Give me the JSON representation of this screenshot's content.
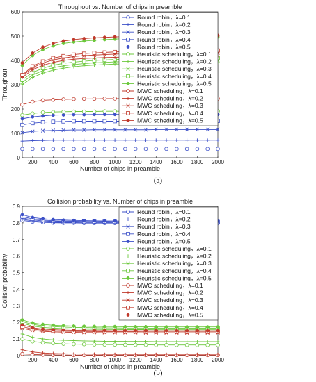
{
  "figure": {
    "caption_a": "(a)",
    "caption_b": "(b)"
  },
  "chart_data": [
    {
      "type": "line",
      "title": "Throughout vs. Number of chips in preamble",
      "xlabel": "Number of chips in preamble",
      "ylabel": "Throughout",
      "xlim": [
        100,
        2000
      ],
      "ylim": [
        0,
        600
      ],
      "xticks": [
        200,
        400,
        600,
        800,
        1000,
        1200,
        1400,
        1600,
        1800,
        2000
      ],
      "yticks": [
        0,
        100,
        200,
        300,
        400,
        500,
        600
      ],
      "grid": false,
      "legend_position": "right",
      "x": [
        100,
        200,
        300,
        400,
        500,
        600,
        700,
        800,
        900,
        1000,
        1100,
        1200,
        1300,
        1400,
        1500,
        1600,
        1700,
        1800,
        1900,
        2000
      ],
      "series": [
        {
          "name": "Round robin，λ=0.1",
          "color": "#3c50c8",
          "marker": "circle",
          "values": [
            36,
            36,
            36,
            36,
            36,
            36,
            36,
            36,
            36,
            36,
            36,
            36,
            36,
            36,
            36,
            36,
            36,
            36,
            36,
            36
          ]
        },
        {
          "name": "Round robin，λ=0.2",
          "color": "#3c50c8",
          "marker": "plus",
          "values": [
            68,
            70,
            71,
            72,
            72,
            72,
            72,
            72,
            72,
            72,
            72,
            72,
            72,
            72,
            72,
            72,
            72,
            72,
            72,
            72
          ]
        },
        {
          "name": "Round robin，λ=0.3",
          "color": "#3c50c8",
          "marker": "x",
          "values": [
            103,
            108,
            111,
            112,
            113,
            114,
            114,
            115,
            115,
            115,
            115,
            115,
            115,
            116,
            116,
            116,
            116,
            116,
            116,
            116
          ]
        },
        {
          "name": "Round robin，λ=0.4",
          "color": "#3c50c8",
          "marker": "square",
          "values": [
            135,
            142,
            146,
            148,
            149,
            150,
            150,
            150,
            150,
            150,
            150,
            150,
            150,
            151,
            151,
            151,
            151,
            151,
            151,
            151
          ]
        },
        {
          "name": "Round robin，λ=0.5",
          "color": "#3c50c8",
          "marker": "dot",
          "values": [
            160,
            168,
            172,
            175,
            176,
            177,
            177,
            178,
            178,
            178,
            178,
            178,
            178,
            178,
            178,
            178,
            178,
            178,
            178,
            178
          ]
        },
        {
          "name": "Heuristic scheduling，λ=0.1",
          "color": "#6cc83c",
          "marker": "circle",
          "values": [
            175,
            182,
            186,
            188,
            189,
            190,
            190,
            190,
            191,
            191,
            191,
            191,
            191,
            191,
            191,
            191,
            191,
            191,
            191,
            191
          ]
        },
        {
          "name": "Heuristic scheduling，λ=0.2",
          "color": "#6cc83c",
          "marker": "plus",
          "values": [
            300,
            330,
            348,
            360,
            368,
            374,
            378,
            381,
            383,
            385,
            386,
            387,
            388,
            389,
            389,
            390,
            390,
            390,
            391,
            391
          ]
        },
        {
          "name": "Heuristic scheduling，λ=0.3",
          "color": "#6cc83c",
          "marker": "x",
          "values": [
            310,
            340,
            358,
            370,
            378,
            383,
            387,
            390,
            392,
            394,
            395,
            396,
            397,
            398,
            398,
            399,
            399,
            400,
            400,
            400
          ]
        },
        {
          "name": "Heuristic scheduling，λ=0.4",
          "color": "#6cc83c",
          "marker": "square",
          "values": [
            320,
            350,
            368,
            380,
            388,
            393,
            397,
            400,
            402,
            404,
            405,
            406,
            407,
            408,
            408,
            409,
            409,
            410,
            410,
            410
          ]
        },
        {
          "name": "Heuristic scheduling，λ=0.5",
          "color": "#6cc83c",
          "marker": "dot",
          "values": [
            380,
            420,
            445,
            460,
            470,
            476,
            480,
            483,
            486,
            488,
            490,
            491,
            492,
            493,
            494,
            495,
            495,
            496,
            496,
            497
          ]
        },
        {
          "name": "MWC scheduling，λ=0.1",
          "color": "#c0392b",
          "marker": "circle",
          "values": [
            218,
            230,
            236,
            238,
            240,
            241,
            242,
            242,
            243,
            243,
            243,
            243,
            243,
            243,
            243,
            243,
            243,
            243,
            243,
            243
          ]
        },
        {
          "name": "MWC scheduling，λ=0.2",
          "color": "#c0392b",
          "marker": "plus",
          "values": [
            330,
            362,
            380,
            392,
            400,
            405,
            408,
            410,
            412,
            413,
            414,
            415,
            415,
            416,
            416,
            417,
            417,
            417,
            417,
            418
          ]
        },
        {
          "name": "MWC scheduling，λ=0.3",
          "color": "#c0392b",
          "marker": "x",
          "values": [
            336,
            370,
            390,
            402,
            410,
            416,
            420,
            422,
            424,
            426,
            427,
            428,
            428,
            429,
            429,
            430,
            430,
            430,
            431,
            431
          ]
        },
        {
          "name": "MWC scheduling，λ=0.4",
          "color": "#c0392b",
          "marker": "square",
          "values": [
            340,
            376,
            396,
            410,
            418,
            424,
            428,
            431,
            433,
            435,
            436,
            437,
            438,
            438,
            439,
            439,
            440,
            440,
            440,
            441
          ]
        },
        {
          "name": "MWC scheduling，λ=0.5",
          "color": "#c0392b",
          "marker": "dot",
          "values": [
            390,
            430,
            455,
            470,
            480,
            486,
            490,
            493,
            495,
            497,
            498,
            499,
            500,
            501,
            501,
            502,
            502,
            503,
            503,
            503
          ]
        }
      ]
    },
    {
      "type": "line",
      "title": "Collision probability vs. Number of chips in preamble",
      "xlabel": "Number of chips in preamble",
      "ylabel": "Collision probability",
      "xlim": [
        100,
        2000
      ],
      "ylim": [
        0,
        0.9
      ],
      "xticks": [
        200,
        400,
        600,
        800,
        1000,
        1200,
        1400,
        1600,
        1800,
        2000
      ],
      "yticks": [
        0,
        0.1,
        0.2,
        0.3,
        0.4,
        0.5,
        0.6,
        0.7,
        0.8,
        0.9
      ],
      "grid": false,
      "legend_position": "right",
      "x": [
        100,
        200,
        300,
        400,
        500,
        600,
        700,
        800,
        900,
        1000,
        1100,
        1200,
        1300,
        1400,
        1500,
        1600,
        1700,
        1800,
        1900,
        2000
      ],
      "series": [
        {
          "name": "Round robin，λ=0.1",
          "color": "#3c50c8",
          "marker": "circle",
          "values": [
            0.815,
            0.807,
            0.803,
            0.801,
            0.8,
            0.8,
            0.799,
            0.799,
            0.799,
            0.799,
            0.798,
            0.798,
            0.798,
            0.798,
            0.798,
            0.798,
            0.798,
            0.798,
            0.798,
            0.798
          ]
        },
        {
          "name": "Round robin，λ=0.2",
          "color": "#3c50c8",
          "marker": "plus",
          "values": [
            0.822,
            0.812,
            0.807,
            0.804,
            0.803,
            0.802,
            0.801,
            0.801,
            0.801,
            0.8,
            0.8,
            0.8,
            0.8,
            0.8,
            0.8,
            0.8,
            0.8,
            0.8,
            0.8,
            0.8
          ]
        },
        {
          "name": "Round robin，λ=0.3",
          "color": "#3c50c8",
          "marker": "x",
          "values": [
            0.83,
            0.818,
            0.812,
            0.809,
            0.807,
            0.806,
            0.805,
            0.805,
            0.804,
            0.804,
            0.804,
            0.803,
            0.803,
            0.803,
            0.803,
            0.803,
            0.803,
            0.803,
            0.803,
            0.803
          ]
        },
        {
          "name": "Round robin，λ=0.4",
          "color": "#3c50c8",
          "marker": "square",
          "values": [
            0.838,
            0.824,
            0.817,
            0.813,
            0.811,
            0.81,
            0.809,
            0.808,
            0.808,
            0.807,
            0.807,
            0.807,
            0.806,
            0.806,
            0.806,
            0.806,
            0.806,
            0.806,
            0.806,
            0.806
          ]
        },
        {
          "name": "Round robin，λ=0.5",
          "color": "#3c50c8",
          "marker": "dot",
          "values": [
            0.85,
            0.833,
            0.825,
            0.82,
            0.817,
            0.815,
            0.814,
            0.813,
            0.812,
            0.812,
            0.811,
            0.811,
            0.811,
            0.81,
            0.81,
            0.81,
            0.81,
            0.81,
            0.81,
            0.81
          ]
        },
        {
          "name": "Heuristic scheduling，λ=0.1",
          "color": "#6cc83c",
          "marker": "circle",
          "values": [
            0.1,
            0.085,
            0.078,
            0.074,
            0.071,
            0.069,
            0.068,
            0.067,
            0.066,
            0.066,
            0.065,
            0.065,
            0.065,
            0.064,
            0.064,
            0.064,
            0.064,
            0.064,
            0.064,
            0.064
          ]
        },
        {
          "name": "Heuristic scheduling，λ=0.2",
          "color": "#6cc83c",
          "marker": "plus",
          "values": [
            0.13,
            0.11,
            0.1,
            0.095,
            0.092,
            0.09,
            0.088,
            0.087,
            0.086,
            0.086,
            0.085,
            0.085,
            0.085,
            0.084,
            0.084,
            0.084,
            0.084,
            0.084,
            0.084,
            0.084
          ]
        },
        {
          "name": "Heuristic scheduling，λ=0.3",
          "color": "#6cc83c",
          "marker": "x",
          "values": [
            0.195,
            0.178,
            0.17,
            0.166,
            0.163,
            0.161,
            0.16,
            0.159,
            0.158,
            0.158,
            0.157,
            0.157,
            0.157,
            0.156,
            0.156,
            0.156,
            0.156,
            0.156,
            0.156,
            0.156
          ]
        },
        {
          "name": "Heuristic scheduling，λ=0.4",
          "color": "#6cc83c",
          "marker": "square",
          "values": [
            0.205,
            0.188,
            0.18,
            0.175,
            0.172,
            0.17,
            0.169,
            0.168,
            0.167,
            0.167,
            0.166,
            0.166,
            0.166,
            0.165,
            0.165,
            0.165,
            0.165,
            0.165,
            0.165,
            0.165
          ]
        },
        {
          "name": "Heuristic scheduling，λ=0.5",
          "color": "#6cc83c",
          "marker": "dot",
          "values": [
            0.215,
            0.197,
            0.188,
            0.183,
            0.18,
            0.178,
            0.177,
            0.176,
            0.175,
            0.175,
            0.174,
            0.174,
            0.174,
            0.173,
            0.173,
            0.173,
            0.173,
            0.173,
            0.173,
            0.173
          ]
        },
        {
          "name": "MWC scheduling，λ=0.1",
          "color": "#c0392b",
          "marker": "circle",
          "values": [
            0.01,
            0.007,
            0.005,
            0.004,
            0.004,
            0.003,
            0.003,
            0.003,
            0.003,
            0.003,
            0.003,
            0.003,
            0.003,
            0.003,
            0.003,
            0.003,
            0.003,
            0.003,
            0.003,
            0.003
          ]
        },
        {
          "name": "MWC scheduling，λ=0.2",
          "color": "#c0392b",
          "marker": "plus",
          "values": [
            0.035,
            0.022,
            0.016,
            0.013,
            0.011,
            0.01,
            0.009,
            0.009,
            0.008,
            0.008,
            0.008,
            0.008,
            0.008,
            0.008,
            0.008,
            0.008,
            0.008,
            0.008,
            0.008,
            0.008
          ]
        },
        {
          "name": "MWC scheduling，λ=0.3",
          "color": "#c0392b",
          "marker": "x",
          "values": [
            0.165,
            0.152,
            0.146,
            0.143,
            0.141,
            0.14,
            0.139,
            0.139,
            0.138,
            0.138,
            0.138,
            0.138,
            0.137,
            0.137,
            0.137,
            0.137,
            0.137,
            0.137,
            0.137,
            0.137
          ]
        },
        {
          "name": "MWC scheduling，λ=0.4",
          "color": "#c0392b",
          "marker": "square",
          "values": [
            0.175,
            0.16,
            0.153,
            0.149,
            0.147,
            0.146,
            0.145,
            0.145,
            0.144,
            0.144,
            0.144,
            0.144,
            0.143,
            0.143,
            0.143,
            0.143,
            0.143,
            0.143,
            0.143,
            0.143
          ]
        },
        {
          "name": "MWC scheduling，λ=0.5",
          "color": "#c0392b",
          "marker": "dot",
          "values": [
            0.185,
            0.168,
            0.16,
            0.156,
            0.154,
            0.153,
            0.152,
            0.151,
            0.151,
            0.15,
            0.15,
            0.15,
            0.15,
            0.15,
            0.15,
            0.15,
            0.15,
            0.15,
            0.15,
            0.15
          ]
        }
      ]
    }
  ]
}
